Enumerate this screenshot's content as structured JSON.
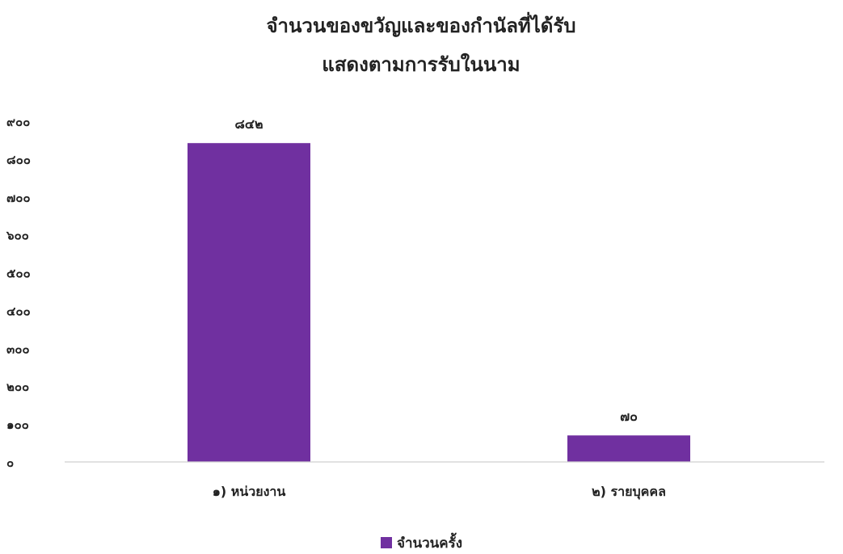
{
  "chart_data": {
    "type": "bar",
    "title_line1": "จำนวนของขวัญและของกำนัลที่ได้รับ",
    "title_line2": "แสดงตามการรับในนาม",
    "categories": [
      "๑) หน่วยงาน",
      "๒) รายบุคคล"
    ],
    "series": [
      {
        "name": "จำนวนครั้ง",
        "values": [
          842,
          70
        ],
        "data_labels": [
          "๘๔๒",
          "๗๐"
        ]
      }
    ],
    "ylim": [
      0,
      900
    ],
    "yticks": [
      0,
      100,
      200,
      300,
      400,
      500,
      600,
      700,
      800,
      900
    ],
    "ytick_labels": [
      "๐",
      "๑๐๐",
      "๒๐๐",
      "๓๐๐",
      "๔๐๐",
      "๕๐๐",
      "๖๐๐",
      "๗๐๐",
      "๘๐๐",
      "๙๐๐"
    ],
    "grid": false,
    "legend": "bottom",
    "color": "#7030A0"
  }
}
